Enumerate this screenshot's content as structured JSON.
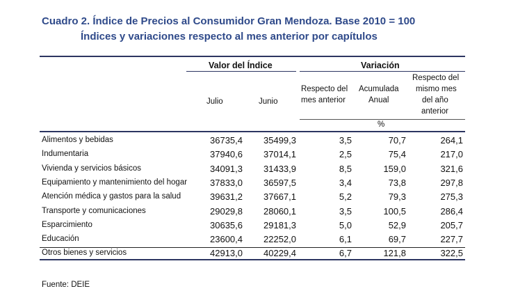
{
  "title": {
    "line1": "Cuadro 2. Índice de Precios al Consumidor Gran Mendoza. Base 2010 = 100",
    "line2": "Índices y variaciones respecto al mes anterior por capítulos"
  },
  "headers": {
    "group_index": "Valor del Índice",
    "group_variation": "Variación",
    "july": "Julio",
    "june": "Junio",
    "prev_month_l1": "Respecto del",
    "prev_month_l2": "mes anterior",
    "cum_l1": "Acumulada",
    "cum_l2": "Anual",
    "yoy_l1": "Respecto del",
    "yoy_l2": "mismo mes",
    "yoy_l3": "del año",
    "yoy_l4": "anterior",
    "percent": "%"
  },
  "rows": [
    {
      "label": "Alimentos y bebidas",
      "julio": "36735,4",
      "junio": "35499,3",
      "mes": "3,5",
      "acum": "70,7",
      "anual": "264,1"
    },
    {
      "label": "Indumentaria",
      "julio": "37940,6",
      "junio": "37014,1",
      "mes": "2,5",
      "acum": "75,4",
      "anual": "217,0"
    },
    {
      "label": "Vivienda y servicios básicos",
      "julio": "34091,3",
      "junio": "31433,9",
      "mes": "8,5",
      "acum": "159,0",
      "anual": "321,6"
    },
    {
      "label": "Equipamiento y mantenimiento del hogar",
      "julio": "37833,0",
      "junio": "36597,5",
      "mes": "3,4",
      "acum": "73,8",
      "anual": "297,8"
    },
    {
      "label": "Atención médica y gastos para la salud",
      "julio": "39631,2",
      "junio": "37667,1",
      "mes": "5,2",
      "acum": "79,3",
      "anual": "275,3"
    },
    {
      "label": "Transporte y comunicaciones",
      "julio": "29029,8",
      "junio": "28060,1",
      "mes": "3,5",
      "acum": "100,5",
      "anual": "286,4"
    },
    {
      "label": "Esparcimiento",
      "julio": "30635,6",
      "junio": "29181,3",
      "mes": "5,0",
      "acum": "52,9",
      "anual": "205,7"
    },
    {
      "label": "Educación",
      "julio": "23600,4",
      "junio": "22252,0",
      "mes": "6,1",
      "acum": "69,7",
      "anual": "227,7"
    },
    {
      "label": "Otros bienes y servicios",
      "julio": "42913,0",
      "junio": "40229,4",
      "mes": "6,7",
      "acum": "121,8",
      "anual": "322,5"
    }
  ],
  "source": "Fuente: DEIE"
}
